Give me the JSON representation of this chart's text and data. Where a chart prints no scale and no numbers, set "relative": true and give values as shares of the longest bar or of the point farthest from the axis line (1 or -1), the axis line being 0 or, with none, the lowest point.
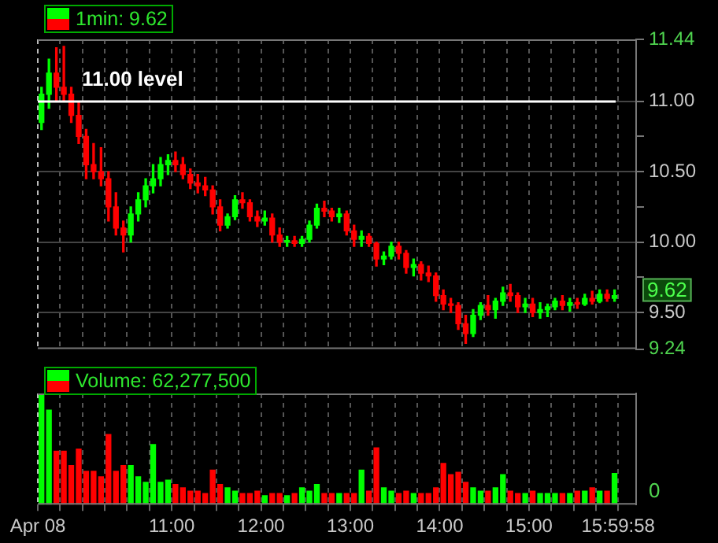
{
  "chart_data": [
    {
      "type": "candlestick",
      "legend": "top left",
      "grid": true,
      "tick_labels": "y",
      "x": [
        9.5417,
        9.625,
        9.7083,
        9.7917,
        9.875,
        9.9583,
        10.0417,
        10.125,
        10.2083,
        10.2917,
        10.375,
        10.4583,
        10.5417,
        10.625,
        10.7083,
        10.7917,
        10.875,
        10.9583,
        11.0417,
        11.125,
        11.2083,
        11.2917,
        11.375,
        11.4583,
        11.5417,
        11.625,
        11.7083,
        11.7917,
        11.875,
        11.9583,
        12.0417,
        12.125,
        12.2083,
        12.2917,
        12.375,
        12.4583,
        12.5417,
        12.625,
        12.7083,
        12.7917,
        12.875,
        12.9583,
        13.0417,
        13.125,
        13.2083,
        13.2917,
        13.375,
        13.4583,
        13.5417,
        13.625,
        13.7083,
        13.7917,
        13.875,
        13.9583,
        14.0417,
        14.125,
        14.2083,
        14.2917,
        14.375,
        14.4583,
        14.5417,
        14.625,
        14.7083,
        14.7917,
        14.875,
        14.9583,
        15.0417,
        15.125,
        15.2083,
        15.2917,
        15.375,
        15.4583,
        15.5417,
        15.625,
        15.7083,
        15.7917,
        15.875,
        15.9583
      ],
      "xlim": [
        9.5,
        16.2
      ],
      "xticks": [
        {
          "value": 9.5,
          "label": null
        },
        {
          "value": 9.75,
          "label": null
        },
        {
          "value": 10,
          "label": null
        },
        {
          "value": 10.25,
          "label": null
        },
        {
          "value": 10.5,
          "label": null
        },
        {
          "value": 10.75,
          "label": null
        },
        {
          "value": 11,
          "label": null
        },
        {
          "value": 11.25,
          "label": null
        },
        {
          "value": 11.5,
          "label": null
        },
        {
          "value": 11.75,
          "label": null
        },
        {
          "value": 12,
          "label": null
        },
        {
          "value": 12.25,
          "label": null
        },
        {
          "value": 12.5,
          "label": null
        },
        {
          "value": 12.75,
          "label": null
        },
        {
          "value": 13,
          "label": null
        },
        {
          "value": 13.25,
          "label": null
        },
        {
          "value": 13.5,
          "label": null
        },
        {
          "value": 13.75,
          "label": null
        },
        {
          "value": 14,
          "label": null
        },
        {
          "value": 14.25,
          "label": null
        },
        {
          "value": 14.5,
          "label": null
        },
        {
          "value": 14.75,
          "label": null
        },
        {
          "value": 15,
          "label": null
        },
        {
          "value": 15.25,
          "label": null
        },
        {
          "value": 15.5,
          "label": null
        },
        {
          "value": 15.75,
          "label": null
        },
        {
          "value": 15.9994,
          "label": null
        }
      ],
      "ylim": [
        9.24,
        11.44
      ],
      "yticks": [
        11.44,
        {
          "value": 11,
          "label": "11.00"
        },
        {
          "value": 10.75,
          "label": null
        },
        {
          "value": 10.5,
          "label": "10.50"
        },
        {
          "value": 10.25,
          "label": null
        },
        {
          "value": 10,
          "label": "10.00"
        },
        {
          "value": 9.75,
          "label": null
        },
        {
          "value": 9.5,
          "label": "9.50"
        },
        9.24
      ],
      "ref_lines": [
        {
          "axis": "y",
          "value": 11,
          "label": "11.00 level",
          "color": "#ffffff"
        }
      ],
      "annotations": [
        "9.62"
      ],
      "series": [
        {
          "name": "1min: 9.62",
          "type": "candlestick",
          "colors": [
            "#00ff00",
            "#00ff00",
            "#ff0000",
            "#ff0000",
            "#ff0000",
            "#ff0000",
            "#ff0000",
            "#ff0000",
            "#ff0000",
            "#ff0000",
            "#ff0000",
            "#ff0000",
            "#00ff00",
            "#00ff00",
            "#00ff00",
            "#00ff00",
            "#00ff00",
            "#00ff00",
            "#ff0000",
            "#ff0000",
            "#ff0000",
            "#ff0000",
            "#ff0000",
            "#ff0000",
            "#ff0000",
            "#00ff00",
            "#00ff00",
            "#ff0000",
            "#ff0000",
            "#ff0000",
            "#00ff00",
            "#ff0000",
            "#ff0000",
            "#00ff00",
            "#ff0000",
            "#00ff00",
            "#00ff00",
            "#00ff00",
            "#ff0000",
            "#ff0000",
            "#00ff00",
            "#ff0000",
            "#ff0000",
            "#00ff00",
            "#ff0000",
            "#ff0000",
            "#00ff00",
            "#00ff00",
            "#ff0000",
            "#ff0000",
            "#00ff00",
            "#ff0000",
            "#ff0000",
            "#ff0000",
            "#ff0000",
            "#ff0000",
            "#ff0000",
            "#ff0000",
            "#00ff00",
            "#00ff00",
            "#ff0000",
            "#00ff00",
            "#00ff00",
            "#ff0000",
            "#ff0000",
            "#00ff00",
            "#ff0000",
            "#00ff00",
            "#00ff00",
            "#00ff00",
            "#ff0000",
            "#00ff00",
            "#ff0000",
            "#00ff00",
            "#ff0000",
            "#00ff00",
            "#ff0000",
            "#00ff00"
          ],
          "ohlc": [
            [
              10.85,
              11.1,
              10.8,
              11.05
            ],
            [
              11.05,
              11.3,
              10.95,
              11.2
            ],
            [
              11.2,
              11.38,
              11.0,
              11.1
            ],
            [
              11.1,
              11.39,
              11.0,
              11.05
            ],
            [
              11.05,
              11.1,
              10.85,
              10.9
            ],
            [
              10.9,
              11.0,
              10.7,
              10.75
            ],
            [
              10.75,
              10.8,
              10.45,
              10.55
            ],
            [
              10.55,
              10.7,
              10.45,
              10.5
            ],
            [
              10.5,
              10.67,
              10.4,
              10.45
            ],
            [
              10.45,
              10.5,
              10.15,
              10.25
            ],
            [
              10.25,
              10.35,
              10.05,
              10.1
            ],
            [
              10.1,
              10.15,
              9.93,
              10.05
            ],
            [
              10.05,
              10.25,
              10.0,
              10.2
            ],
            [
              10.2,
              10.35,
              10.15,
              10.3
            ],
            [
              10.3,
              10.45,
              10.25,
              10.4
            ],
            [
              10.4,
              10.55,
              10.35,
              10.45
            ],
            [
              10.45,
              10.6,
              10.4,
              10.55
            ],
            [
              10.55,
              10.62,
              10.48,
              10.58
            ],
            [
              10.58,
              10.64,
              10.5,
              10.55
            ],
            [
              10.55,
              10.6,
              10.45,
              10.48
            ],
            [
              10.48,
              10.52,
              10.38,
              10.42
            ],
            [
              10.42,
              10.48,
              10.35,
              10.4
            ],
            [
              10.4,
              10.46,
              10.33,
              10.37
            ],
            [
              10.37,
              10.4,
              10.2,
              10.25
            ],
            [
              10.25,
              10.3,
              10.08,
              10.12
            ],
            [
              10.12,
              10.2,
              10.1,
              10.18
            ],
            [
              10.18,
              10.33,
              10.16,
              10.3
            ],
            [
              10.3,
              10.35,
              10.24,
              10.28
            ],
            [
              10.28,
              10.3,
              10.15,
              10.18
            ],
            [
              10.18,
              10.22,
              10.11,
              10.15
            ],
            [
              10.15,
              10.22,
              10.12,
              10.17
            ],
            [
              10.17,
              10.2,
              10.0,
              10.05
            ],
            [
              10.05,
              10.1,
              9.97,
              10.0
            ],
            [
              10.0,
              10.04,
              9.97,
              10.01
            ],
            [
              10.01,
              10.04,
              9.97,
              9.99
            ],
            [
              9.99,
              10.04,
              9.97,
              10.02
            ],
            [
              10.02,
              10.15,
              10.0,
              10.12
            ],
            [
              10.12,
              10.27,
              10.1,
              10.24
            ],
            [
              10.24,
              10.29,
              10.18,
              10.22
            ],
            [
              10.22,
              10.24,
              10.15,
              10.18
            ],
            [
              10.18,
              10.24,
              10.14,
              10.2
            ],
            [
              10.2,
              10.22,
              10.05,
              10.08
            ],
            [
              10.08,
              10.12,
              9.97,
              10.02
            ],
            [
              10.02,
              10.08,
              9.97,
              10.04
            ],
            [
              10.04,
              10.06,
              9.97,
              9.99
            ],
            [
              9.99,
              10.0,
              9.83,
              9.88
            ],
            [
              9.88,
              9.93,
              9.84,
              9.9
            ],
            [
              9.9,
              10.0,
              9.88,
              9.97
            ],
            [
              9.97,
              10.0,
              9.88,
              9.92
            ],
            [
              9.92,
              9.94,
              9.78,
              9.82
            ],
            [
              9.82,
              9.88,
              9.76,
              9.84
            ],
            [
              9.84,
              9.86,
              9.73,
              9.78
            ],
            [
              9.78,
              9.83,
              9.72,
              9.76
            ],
            [
              9.76,
              9.78,
              9.58,
              9.62
            ],
            [
              9.62,
              9.66,
              9.52,
              9.56
            ],
            [
              9.56,
              9.6,
              9.5,
              9.55
            ],
            [
              9.55,
              9.57,
              9.38,
              9.42
            ],
            [
              9.42,
              9.48,
              9.28,
              9.35
            ],
            [
              9.35,
              9.52,
              9.33,
              9.48
            ],
            [
              9.48,
              9.57,
              9.45,
              9.55
            ],
            [
              9.55,
              9.62,
              9.48,
              9.52
            ],
            [
              9.52,
              9.6,
              9.46,
              9.58
            ],
            [
              9.58,
              9.68,
              9.55,
              9.64
            ],
            [
              9.64,
              9.7,
              9.58,
              9.62
            ],
            [
              9.62,
              9.64,
              9.5,
              9.54
            ],
            [
              9.54,
              9.6,
              9.5,
              9.56
            ],
            [
              9.56,
              9.6,
              9.47,
              9.5
            ],
            [
              9.5,
              9.57,
              9.46,
              9.52
            ],
            [
              9.52,
              9.56,
              9.47,
              9.54
            ],
            [
              9.54,
              9.6,
              9.52,
              9.58
            ],
            [
              9.58,
              9.62,
              9.52,
              9.55
            ],
            [
              9.55,
              9.6,
              9.51,
              9.57
            ],
            [
              9.57,
              9.6,
              9.53,
              9.56
            ],
            [
              9.56,
              9.63,
              9.55,
              9.6
            ],
            [
              9.6,
              9.65,
              9.56,
              9.58
            ],
            [
              9.58,
              9.66,
              9.57,
              9.63
            ],
            [
              9.63,
              9.66,
              9.58,
              9.6
            ],
            [
              9.6,
              9.66,
              9.58,
              9.62
            ]
          ]
        }
      ]
    },
    {
      "type": "bar",
      "legend": "top left",
      "grid": "x",
      "relative": true,
      "tick_labels": "x",
      "x": [
        9.5417,
        9.625,
        9.7083,
        9.7917,
        9.875,
        9.9583,
        10.0417,
        10.125,
        10.2083,
        10.2917,
        10.375,
        10.4583,
        10.5417,
        10.625,
        10.7083,
        10.7917,
        10.875,
        10.9583,
        11.0417,
        11.125,
        11.2083,
        11.2917,
        11.375,
        11.4583,
        11.5417,
        11.625,
        11.7083,
        11.7917,
        11.875,
        11.9583,
        12.0417,
        12.125,
        12.2083,
        12.2917,
        12.375,
        12.4583,
        12.5417,
        12.625,
        12.7083,
        12.7917,
        12.875,
        12.9583,
        13.0417,
        13.125,
        13.2083,
        13.2917,
        13.375,
        13.4583,
        13.5417,
        13.625,
        13.7083,
        13.7917,
        13.875,
        13.9583,
        14.0417,
        14.125,
        14.2083,
        14.2917,
        14.375,
        14.4583,
        14.5417,
        14.625,
        14.7083,
        14.7917,
        14.875,
        14.9583,
        15.0417,
        15.125,
        15.2083,
        15.2917,
        15.375,
        15.4583,
        15.5417,
        15.625,
        15.7083,
        15.7917,
        15.875,
        15.9583
      ],
      "xlim": [
        9.5,
        16.2
      ],
      "xticks": [
        {
          "value": 9.5,
          "label": "Apr 08"
        },
        {
          "value": 9.75,
          "label": null
        },
        {
          "value": 10,
          "label": null
        },
        {
          "value": 10.25,
          "label": null
        },
        {
          "value": 10.5,
          "label": null
        },
        {
          "value": 10.75,
          "label": null
        },
        {
          "value": 11,
          "label": "11:00"
        },
        {
          "value": 11.25,
          "label": null
        },
        {
          "value": 11.5,
          "label": null
        },
        {
          "value": 11.75,
          "label": null
        },
        {
          "value": 12,
          "label": "12:00"
        },
        {
          "value": 12.25,
          "label": null
        },
        {
          "value": 12.5,
          "label": null
        },
        {
          "value": 12.75,
          "label": null
        },
        {
          "value": 13,
          "label": "13:00"
        },
        {
          "value": 13.25,
          "label": null
        },
        {
          "value": 13.5,
          "label": null
        },
        {
          "value": 13.75,
          "label": null
        },
        {
          "value": 14,
          "label": "14:00"
        },
        {
          "value": 14.25,
          "label": null
        },
        {
          "value": 14.5,
          "label": null
        },
        {
          "value": 14.75,
          "label": null
        },
        {
          "value": 15,
          "label": "15:00"
        },
        {
          "value": 15.25,
          "label": null
        },
        {
          "value": 15.5,
          "label": null
        },
        {
          "value": 15.75,
          "label": null
        },
        {
          "value": 15.9994,
          "label": "15:59:58"
        }
      ],
      "annotations": [
        "0"
      ],
      "series": [
        {
          "name": "Volume: 62,277,500",
          "colors": [
            "#00ff00",
            "#00ff00",
            "#ff0000",
            "#ff0000",
            "#ff0000",
            "#ff0000",
            "#ff0000",
            "#ff0000",
            "#ff0000",
            "#ff0000",
            "#ff0000",
            "#ff0000",
            "#00ff00",
            "#00ff00",
            "#00ff00",
            "#00ff00",
            "#00ff00",
            "#00ff00",
            "#ff0000",
            "#ff0000",
            "#ff0000",
            "#ff0000",
            "#ff0000",
            "#ff0000",
            "#ff0000",
            "#00ff00",
            "#00ff00",
            "#ff0000",
            "#ff0000",
            "#ff0000",
            "#00ff00",
            "#ff0000",
            "#ff0000",
            "#00ff00",
            "#ff0000",
            "#00ff00",
            "#00ff00",
            "#00ff00",
            "#ff0000",
            "#ff0000",
            "#00ff00",
            "#ff0000",
            "#ff0000",
            "#00ff00",
            "#ff0000",
            "#ff0000",
            "#00ff00",
            "#00ff00",
            "#ff0000",
            "#ff0000",
            "#00ff00",
            "#ff0000",
            "#ff0000",
            "#ff0000",
            "#ff0000",
            "#ff0000",
            "#ff0000",
            "#ff0000",
            "#00ff00",
            "#00ff00",
            "#ff0000",
            "#00ff00",
            "#00ff00",
            "#ff0000",
            "#ff0000",
            "#00ff00",
            "#ff0000",
            "#00ff00",
            "#00ff00",
            "#00ff00",
            "#ff0000",
            "#00ff00",
            "#ff0000",
            "#00ff00",
            "#ff0000",
            "#00ff00",
            "#ff0000",
            "#00ff00"
          ],
          "values": [
            1,
            0.85,
            0.48,
            0.48,
            0.35,
            0.5,
            0.3,
            0.3,
            0.25,
            0.63,
            0.3,
            0.35,
            0.35,
            0.25,
            0.2,
            0.54,
            0.2,
            0.22,
            0.18,
            0.15,
            0.12,
            0.12,
            0.1,
            0.31,
            0.18,
            0.15,
            0.12,
            0.1,
            0.1,
            0.12,
            0.08,
            0.1,
            0.1,
            0.08,
            0.1,
            0.15,
            0.12,
            0.18,
            0.1,
            0.1,
            0.1,
            0.1,
            0.1,
            0.31,
            0.12,
            0.51,
            0.15,
            0.12,
            0.1,
            0.12,
            0.1,
            0.1,
            0.1,
            0.15,
            0.37,
            0.27,
            0.29,
            0.2,
            0.15,
            0.12,
            0.12,
            0.15,
            0.27,
            0.12,
            0.1,
            0.1,
            0.12,
            0.1,
            0.1,
            0.1,
            0.1,
            0.1,
            0.12,
            0.12,
            0.15,
            0.12,
            0.12,
            0.28
          ]
        }
      ]
    }
  ]
}
